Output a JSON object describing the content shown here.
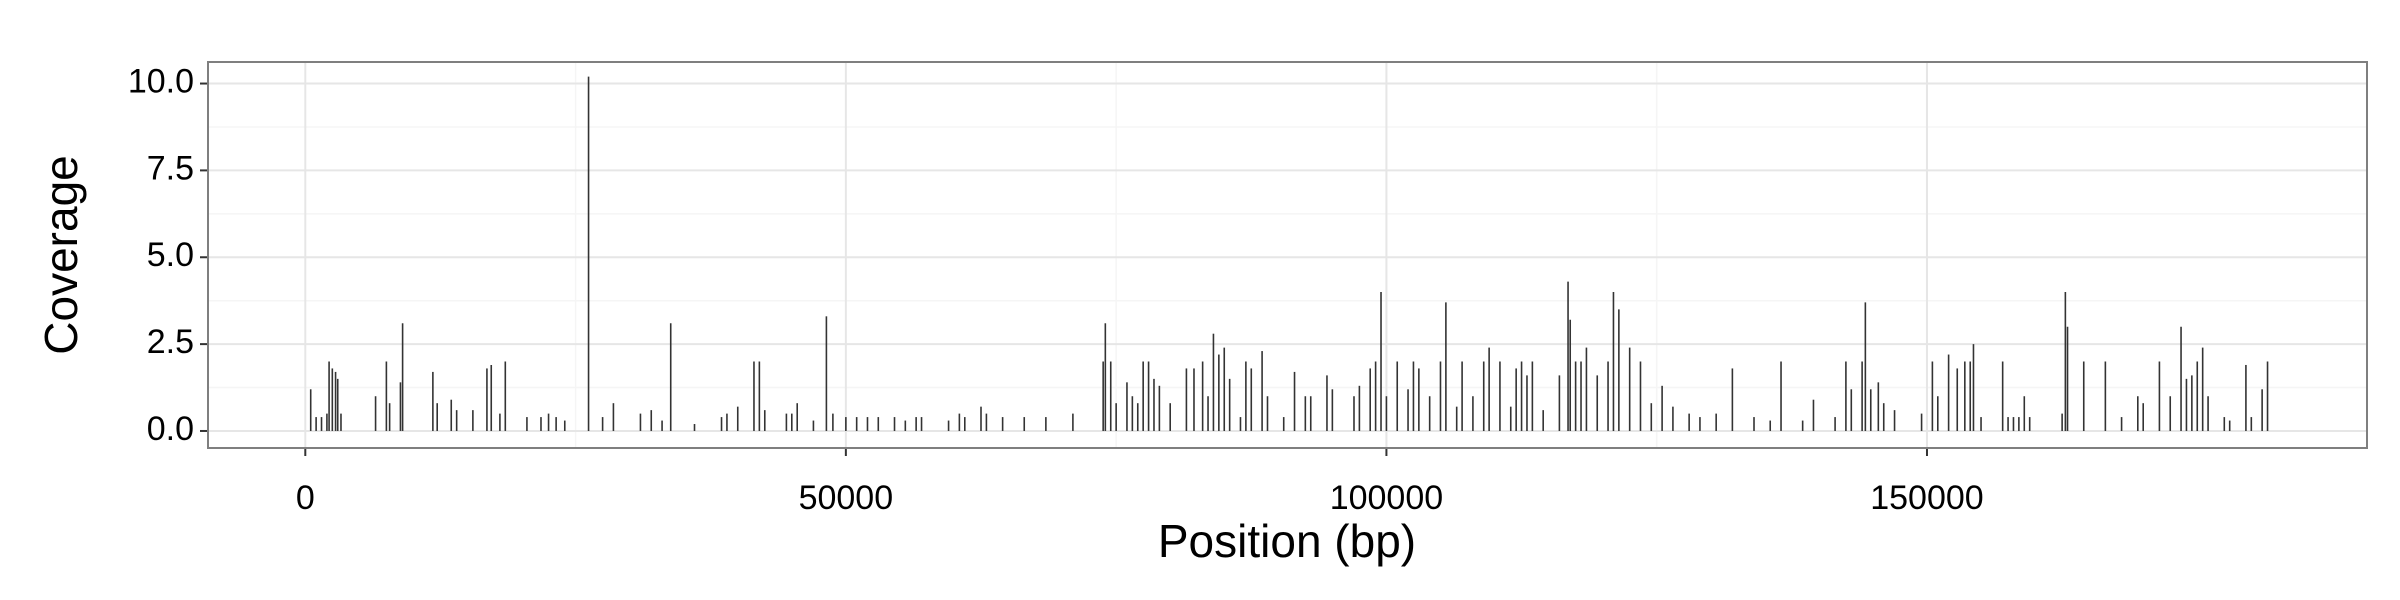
{
  "chart_data": {
    "type": "spike",
    "xlabel": "Position (bp)",
    "ylabel": "Coverage",
    "color": "#333333",
    "grid": true,
    "xlim": [
      -9000,
      190700
    ],
    "xticks": [
      0,
      50000,
      100000,
      150000
    ],
    "ylim": [
      -0.49,
      10.62
    ],
    "yticks": [
      {
        "value": 0,
        "label": "0.0"
      },
      2.5,
      {
        "value": 5,
        "label": "5.0"
      },
      7.5,
      {
        "value": 10,
        "label": "10.0"
      }
    ],
    "x": [
      500,
      1000,
      1500,
      2000,
      2200,
      2500,
      2800,
      3000,
      3300,
      6500,
      7500,
      7800,
      8800,
      9000,
      11800,
      12200,
      13500,
      14000,
      15500,
      16800,
      17200,
      18000,
      18500,
      20500,
      21800,
      22500,
      23200,
      24000,
      26200,
      27500,
      28500,
      31000,
      32000,
      33000,
      33800,
      36000,
      38500,
      39000,
      40000,
      41500,
      42000,
      42500,
      44500,
      45000,
      45500,
      47000,
      48200,
      48800,
      50000,
      51000,
      52000,
      53000,
      54500,
      55500,
      56500,
      57000,
      59500,
      60500,
      61000,
      62500,
      63000,
      64500,
      66500,
      68500,
      71000,
      73800,
      74000,
      74500,
      75000,
      76000,
      76500,
      77000,
      77500,
      78000,
      78500,
      79000,
      80000,
      81500,
      82200,
      83000,
      83500,
      84000,
      84500,
      85000,
      85500,
      86500,
      87000,
      87500,
      88500,
      89000,
      90500,
      91500,
      92500,
      93000,
      94500,
      95000,
      97000,
      97500,
      98500,
      99000,
      99500,
      100000,
      101000,
      102000,
      102500,
      103000,
      104000,
      105000,
      105500,
      106500,
      107000,
      108000,
      109000,
      109500,
      110500,
      111500,
      112000,
      112500,
      113000,
      113500,
      114500,
      116000,
      116800,
      117000,
      117500,
      118000,
      118500,
      119500,
      120500,
      121000,
      121500,
      122500,
      123500,
      124500,
      125500,
      126500,
      128000,
      129000,
      130500,
      132000,
      134000,
      135500,
      136500,
      138500,
      139500,
      141500,
      142500,
      143000,
      144000,
      144300,
      144800,
      145500,
      146000,
      147000,
      149500,
      150500,
      151000,
      152000,
      152800,
      153500,
      154000,
      154300,
      155000,
      157000,
      157500,
      158000,
      158500,
      159000,
      159500,
      162500,
      162800,
      163000,
      164500,
      166500,
      168000,
      169500,
      170000,
      171500,
      172500,
      173500,
      174000,
      174500,
      175000,
      175500,
      176000,
      177500,
      178000,
      179500,
      180000,
      181000,
      181500
    ],
    "values": [
      1.2,
      0.4,
      0.4,
      0.5,
      2.0,
      1.8,
      1.7,
      1.5,
      0.5,
      1.0,
      2.0,
      0.8,
      1.4,
      3.1,
      1.7,
      0.8,
      0.9,
      0.6,
      0.6,
      1.8,
      1.9,
      0.5,
      2.0,
      0.4,
      0.4,
      0.5,
      0.4,
      0.3,
      10.2,
      0.4,
      0.8,
      0.5,
      0.6,
      0.3,
      3.1,
      0.2,
      0.4,
      0.5,
      0.7,
      2.0,
      2.0,
      0.6,
      0.5,
      0.5,
      0.8,
      0.3,
      3.3,
      0.5,
      0.4,
      0.4,
      0.4,
      0.4,
      0.4,
      0.3,
      0.4,
      0.4,
      0.3,
      0.5,
      0.4,
      0.7,
      0.5,
      0.4,
      0.4,
      0.4,
      0.5,
      2.0,
      3.1,
      2.0,
      0.8,
      1.4,
      1.0,
      0.8,
      2.0,
      2.0,
      1.5,
      1.3,
      0.8,
      1.8,
      1.8,
      2.0,
      1.0,
      2.8,
      2.2,
      2.4,
      1.5,
      0.4,
      2.0,
      1.8,
      2.3,
      1.0,
      0.4,
      1.7,
      1.0,
      1.0,
      1.6,
      1.2,
      1.0,
      1.3,
      1.8,
      2.0,
      4.0,
      1.0,
      2.0,
      1.2,
      2.0,
      1.8,
      1.0,
      2.0,
      3.7,
      0.7,
      2.0,
      1.0,
      2.0,
      2.4,
      2.0,
      0.7,
      1.8,
      2.0,
      1.6,
      2.0,
      0.6,
      1.6,
      4.3,
      3.2,
      2.0,
      2.0,
      2.4,
      1.6,
      2.0,
      4.0,
      3.5,
      2.4,
      2.0,
      0.8,
      1.3,
      0.7,
      0.5,
      0.4,
      0.5,
      1.8,
      0.4,
      0.3,
      2.0,
      0.3,
      0.9,
      0.4,
      2.0,
      1.2,
      2.0,
      3.7,
      1.2,
      1.4,
      0.8,
      0.6,
      0.5,
      2.0,
      1.0,
      2.2,
      1.8,
      2.0,
      2.0,
      2.5,
      0.4,
      2.0,
      0.4,
      0.4,
      0.4,
      1.0,
      0.4,
      0.5,
      4.0,
      3.0,
      2.0,
      2.0,
      0.4,
      1.0,
      0.8,
      2.0,
      1.0,
      3.0,
      1.5,
      1.6,
      2.0,
      2.4,
      1.0,
      0.4,
      0.3,
      1.9,
      0.4,
      1.2,
      2.0
    ]
  }
}
